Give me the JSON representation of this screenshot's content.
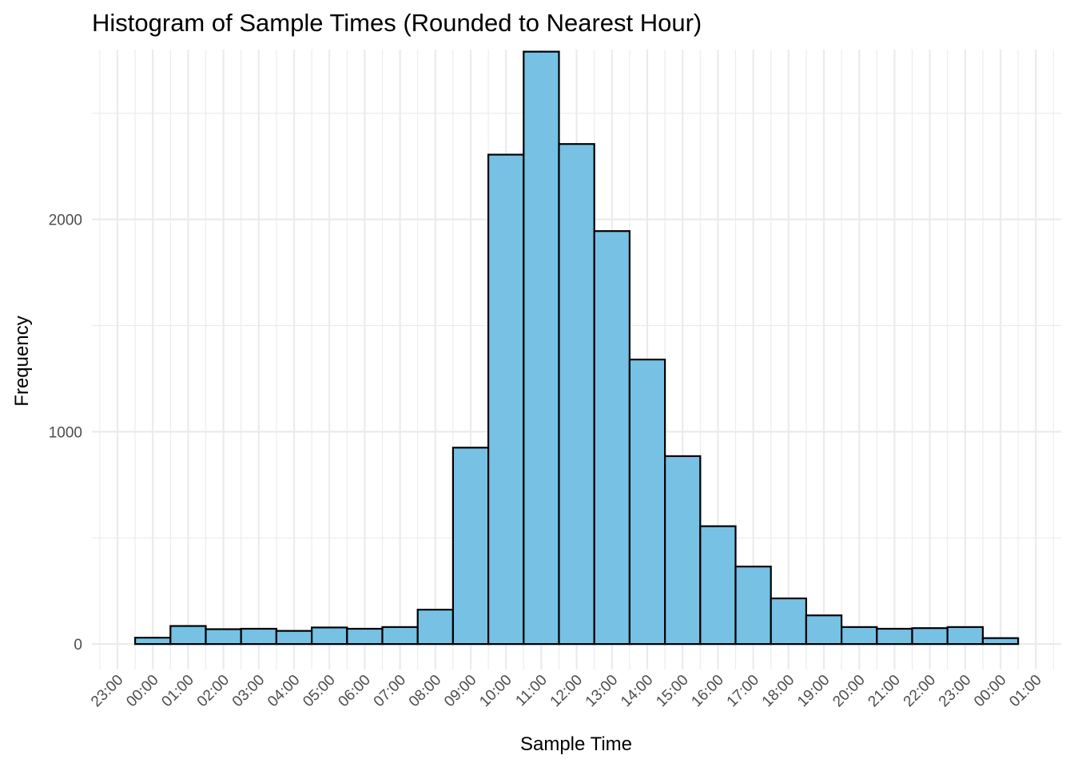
{
  "chart_data": {
    "type": "bar",
    "title": "Histogram of Sample Times (Rounded to Nearest Hour)",
    "xlabel": "Sample Time",
    "ylabel": "Frequency",
    "ylim": [
      -120,
      2800
    ],
    "y_ticks": [
      0,
      1000,
      2000
    ],
    "y_tick_labels": [
      "0",
      "1000",
      "2000"
    ],
    "x_tick_labels": [
      "23:00",
      "00:00",
      "01:00",
      "02:00",
      "03:00",
      "04:00",
      "05:00",
      "06:00",
      "07:00",
      "08:00",
      "09:00",
      "10:00",
      "11:00",
      "12:00",
      "13:00",
      "14:00",
      "15:00",
      "16:00",
      "17:00",
      "18:00",
      "19:00",
      "20:00",
      "21:00",
      "22:00",
      "23:00",
      "00:00",
      "01:00"
    ],
    "categories": [
      "00:00",
      "01:00",
      "02:00",
      "03:00",
      "04:00",
      "05:00",
      "06:00",
      "07:00",
      "08:00",
      "09:00",
      "10:00",
      "11:00",
      "12:00",
      "13:00",
      "14:00",
      "15:00",
      "16:00",
      "17:00",
      "18:00",
      "19:00",
      "20:00",
      "21:00",
      "22:00",
      "23:00",
      "00:00"
    ],
    "values": [
      30,
      85,
      70,
      72,
      62,
      78,
      72,
      80,
      162,
      925,
      2305,
      2790,
      2355,
      1945,
      1340,
      885,
      555,
      365,
      215,
      135,
      80,
      72,
      75,
      80,
      28
    ],
    "bar_color": "#76c1e4",
    "bar_outline": "#000000",
    "grid": true,
    "legend": "none"
  }
}
